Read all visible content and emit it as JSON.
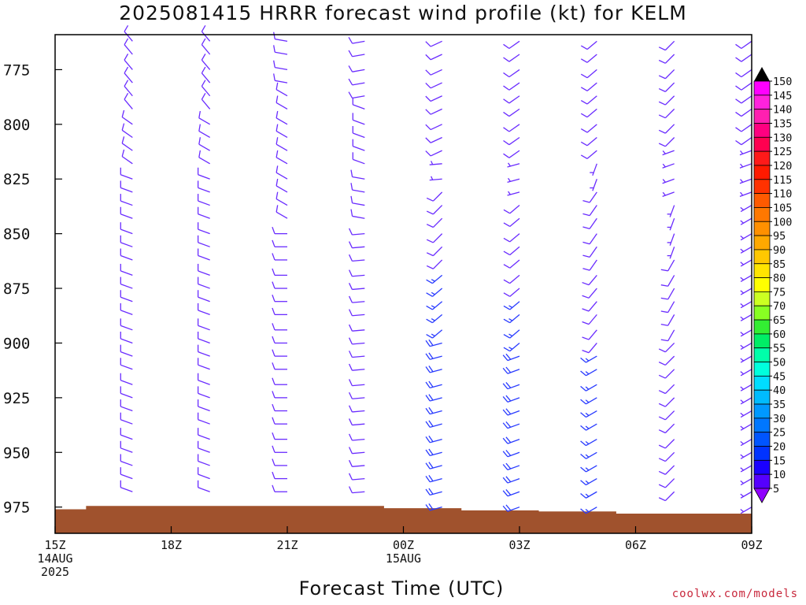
{
  "title": "2025081415 HRRR forecast wind profile (kt) for KELM",
  "x_title": "Forecast Time (UTC)",
  "credit": "coolwx.com/models",
  "colors": {
    "barb_default": "#6a2cff",
    "barb_strong": "#2a3cff",
    "terrain": "#a0522d",
    "frame": "#000000"
  },
  "chart_data": {
    "type": "wind-barb profile",
    "title": "2025081415 HRRR forecast wind profile (kt) for KELM",
    "xlabel": "Forecast Time (UTC)",
    "ylabel": "",
    "x_hours_range": [
      0,
      18
    ],
    "y_range_hPa": [
      759,
      987
    ],
    "y_ticks": [
      775,
      800,
      825,
      850,
      875,
      900,
      925,
      950,
      975
    ],
    "x_ticks": [
      {
        "hour": 0,
        "lines": [
          "15Z",
          "14AUG",
          "2025"
        ]
      },
      {
        "hour": 3,
        "lines": [
          "18Z"
        ]
      },
      {
        "hour": 6,
        "lines": [
          "21Z"
        ]
      },
      {
        "hour": 9,
        "lines": [
          "00Z",
          "15AUG"
        ]
      },
      {
        "hour": 12,
        "lines": [
          "03Z"
        ]
      },
      {
        "hour": 15,
        "lines": [
          "06Z"
        ]
      },
      {
        "hour": 18,
        "lines": [
          "09Z"
        ]
      }
    ],
    "colorbar": {
      "labels": [
        "150",
        "145",
        "140",
        "135",
        "130",
        "125",
        "120",
        "115",
        "110",
        "105",
        "100",
        "95",
        "90",
        "85",
        "80",
        "75",
        "70",
        "65",
        "60",
        "55",
        "50",
        "45",
        "40",
        "35",
        "30",
        "25",
        "20",
        "15",
        "10",
        "5"
      ],
      "colors": [
        "#ff00ff",
        "#ff22dd",
        "#ff20b0",
        "#ff0080",
        "#ff0050",
        "#ff1a1a",
        "#ff1a00",
        "#ff3200",
        "#ff5a00",
        "#ff7800",
        "#ff9000",
        "#ffa800",
        "#ffc800",
        "#ffe400",
        "#ffff00",
        "#ccff22",
        "#88ff22",
        "#33ee33",
        "#00ee66",
        "#00ffaa",
        "#00ffdd",
        "#00ddff",
        "#00bbff",
        "#0099ff",
        "#0077ff",
        "#0055ff",
        "#0033ff",
        "#1a00ff",
        "#5500ff",
        "#8f00ff"
      ]
    },
    "terrain_surface_hPa": [
      {
        "hour": 0,
        "p": 976
      },
      {
        "hour": 0.8,
        "p": 974.5
      },
      {
        "hour": 7.5,
        "p": 974.5
      },
      {
        "hour": 8.5,
        "p": 975.5
      },
      {
        "hour": 10.5,
        "p": 976.5
      },
      {
        "hour": 12.5,
        "p": 977
      },
      {
        "hour": 14.5,
        "p": 978
      },
      {
        "hour": 18,
        "p": 978
      }
    ],
    "barb_levels_hPa": [
      762,
      768,
      775,
      781,
      787,
      793,
      800,
      806,
      812,
      818,
      825,
      831,
      837,
      843,
      850,
      856,
      862,
      869,
      875,
      881,
      887,
      894,
      900,
      906,
      912,
      919,
      925,
      931,
      937,
      944,
      950,
      956,
      962,
      968,
      975
    ],
    "columns": [
      {
        "hour": 2.0,
        "top": 762,
        "bottom": 969,
        "bands": [
          {
            "to": 796,
            "dir": 320,
            "spd": 10
          },
          {
            "to": 818,
            "dir": 305,
            "spd": 10
          },
          {
            "to": 990,
            "dir": 290,
            "spd": 10
          }
        ]
      },
      {
        "hour": 4.0,
        "top": 762,
        "bottom": 969,
        "bands": [
          {
            "to": 796,
            "dir": 320,
            "spd": 10
          },
          {
            "to": 818,
            "dir": 300,
            "spd": 10
          },
          {
            "to": 990,
            "dir": 290,
            "spd": 10
          }
        ]
      },
      {
        "hour": 6.0,
        "top": 762,
        "bottom": 969,
        "bands": [
          {
            "to": 783,
            "dir": 280,
            "spd": 10
          },
          {
            "to": 812,
            "dir": 300,
            "spd": 10
          },
          {
            "to": 845,
            "dir": 300,
            "spd": 10
          },
          {
            "to": 990,
            "dir": 270,
            "spd": 10
          }
        ]
      },
      {
        "hour": 8.0,
        "top": 762,
        "bottom": 969,
        "bands": [
          {
            "to": 790,
            "dir": 260,
            "spd": 10
          },
          {
            "to": 818,
            "dir": 290,
            "spd": 10
          },
          {
            "to": 845,
            "dir": 280,
            "spd": 10
          },
          {
            "to": 990,
            "dir": 265,
            "spd": 10
          }
        ]
      },
      {
        "hour": 10.0,
        "top": 762,
        "bottom": 975,
        "bands": [
          {
            "to": 815,
            "dir": 245,
            "spd": 10
          },
          {
            "to": 828,
            "dir": 265,
            "spd": 5
          },
          {
            "to": 862,
            "dir": 225,
            "spd": 10
          },
          {
            "to": 895,
            "dir": 230,
            "spd": 15
          },
          {
            "to": 990,
            "dir": 255,
            "spd": 20
          }
        ]
      },
      {
        "hour": 12.0,
        "top": 762,
        "bottom": 975,
        "bands": [
          {
            "to": 812,
            "dir": 235,
            "spd": 10
          },
          {
            "to": 832,
            "dir": 255,
            "spd": 5
          },
          {
            "to": 875,
            "dir": 230,
            "spd": 10
          },
          {
            "to": 905,
            "dir": 230,
            "spd": 15
          },
          {
            "to": 990,
            "dir": 250,
            "spd": 20
          }
        ]
      },
      {
        "hour": 14.0,
        "top": 762,
        "bottom": 975,
        "bands": [
          {
            "to": 815,
            "dir": 230,
            "spd": 10
          },
          {
            "to": 830,
            "dir": 200,
            "spd": 5
          },
          {
            "to": 865,
            "dir": 215,
            "spd": 10
          },
          {
            "to": 905,
            "dir": 220,
            "spd": 10
          },
          {
            "to": 990,
            "dir": 240,
            "spd": 15
          }
        ]
      },
      {
        "hour": 16.0,
        "top": 762,
        "bottom": 972,
        "bands": [
          {
            "to": 810,
            "dir": 225,
            "spd": 10
          },
          {
            "to": 832,
            "dir": 250,
            "spd": 5
          },
          {
            "to": 860,
            "dir": 200,
            "spd": 5
          },
          {
            "to": 895,
            "dir": 210,
            "spd": 10
          },
          {
            "to": 990,
            "dir": 225,
            "spd": 10
          }
        ]
      },
      {
        "hour": 18.0,
        "top": 762,
        "bottom": 975,
        "bands": [
          {
            "to": 810,
            "dir": 235,
            "spd": 10
          },
          {
            "to": 832,
            "dir": 250,
            "spd": 5
          },
          {
            "to": 990,
            "dir": 240,
            "spd": 5
          }
        ]
      }
    ]
  }
}
